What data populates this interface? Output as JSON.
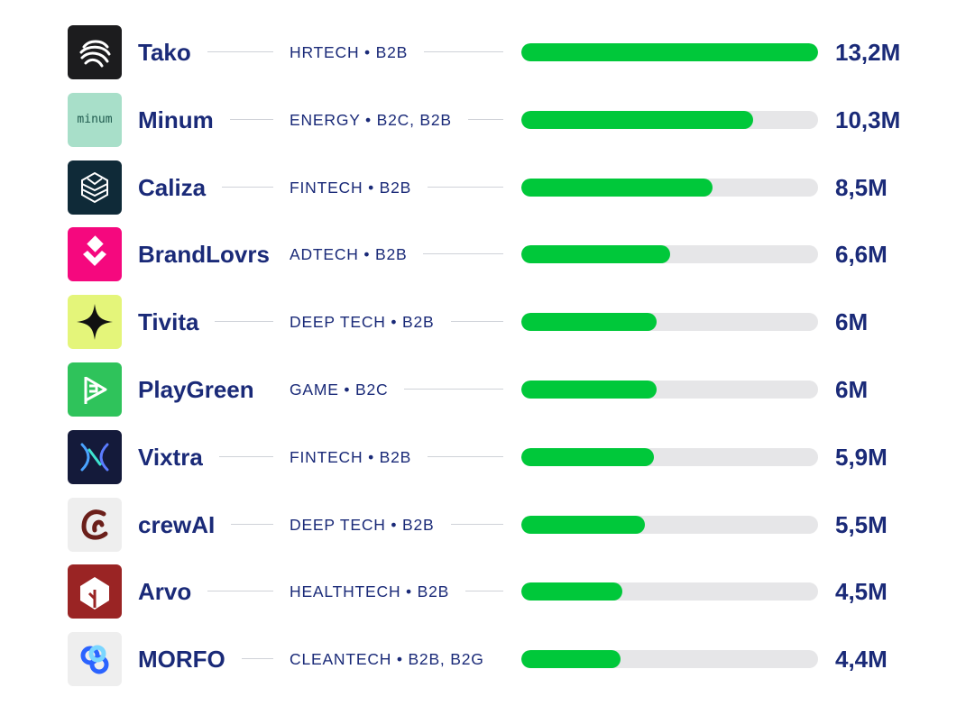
{
  "colors": {
    "text": "#1a2a78",
    "bar_fill": "#00c83a",
    "bar_track": "#e6e6e8",
    "connector": "#cfd2d8"
  },
  "chart_data": {
    "type": "bar",
    "orientation": "horizontal",
    "title": "",
    "xlabel": "",
    "ylabel": "",
    "xlim": [
      0,
      13.2
    ],
    "grid": false,
    "legend": "none",
    "categories": [
      "Tako",
      "Minum",
      "Caliza",
      "BrandLovrs",
      "Tivita",
      "PlayGreen",
      "Vixtra",
      "crewAI",
      "Arvo",
      "MORFO"
    ],
    "series": [
      {
        "values": [
          13.2,
          10.3,
          8.5,
          6.6,
          6,
          6,
          5.9,
          5.5,
          4.5,
          4.4
        ]
      }
    ],
    "data_labels": [
      "13,2M",
      "10,3M",
      "8,5M",
      "6,6M",
      "6M",
      "6M",
      "5,9M",
      "5,5M",
      "4,5M",
      "4,4M"
    ],
    "row_labels": [
      "HRTECH • B2B",
      "ENERGY • B2C, B2B",
      "FINTECH • B2B",
      "ADTECH • B2B",
      "DEEP TECH • B2B",
      "GAME • B2C",
      "FINTECH • B2B",
      "DEEP TECH • B2B",
      "HEALTHTECH • B2B",
      "CLEANTECH • B2B, B2G"
    ]
  },
  "rows": [
    {
      "name": "Tako",
      "category": "HRTECH • B2B",
      "value": 13.2,
      "value_label": "13,2M",
      "logo_icon": "tako-wave-icon",
      "logo_bg": "#1c1c1e",
      "logo_text": ""
    },
    {
      "name": "Minum",
      "category": "ENERGY • B2C, B2B",
      "value": 10.3,
      "value_label": "10,3M",
      "logo_icon": "minum-wordmark-icon",
      "logo_bg": "#a8dfc9",
      "logo_text": "minum"
    },
    {
      "name": "Caliza",
      "category": "FINTECH • B2B",
      "value": 8.5,
      "value_label": "8,5M",
      "logo_icon": "caliza-hexagon-icon",
      "logo_bg": "#0f2a38",
      "logo_text": ""
    },
    {
      "name": "BrandLovrs",
      "category": "ADTECH • B2B",
      "value": 6.6,
      "value_label": "6,6M",
      "logo_icon": "brandlovrs-diamond-icon",
      "logo_bg": "#f5087e",
      "logo_text": ""
    },
    {
      "name": "Tivita",
      "category": "DEEP TECH • B2B",
      "value": 6,
      "value_label": "6M",
      "logo_icon": "tivita-star-icon",
      "logo_bg": "#e4f57a",
      "logo_text": ""
    },
    {
      "name": "PlayGreen",
      "category": "GAME • B2C",
      "value": 6,
      "value_label": "6M",
      "logo_icon": "playgreen-flag-icon",
      "logo_bg": "#2fc35b",
      "logo_text": ""
    },
    {
      "name": "Vixtra",
      "category": "FINTECH • B2B",
      "value": 5.9,
      "value_label": "5,9M",
      "logo_icon": "vixtra-x-icon",
      "logo_bg": "#141a3a",
      "logo_text": ""
    },
    {
      "name": "crewAI",
      "category": "DEEP TECH • B2B",
      "value": 5.5,
      "value_label": "5,5M",
      "logo_icon": "crewai-swirl-icon",
      "logo_bg": "#eeeeee",
      "logo_text": ""
    },
    {
      "name": "Arvo",
      "category": "HEALTHTECH • B2B",
      "value": 4.5,
      "value_label": "4,5M",
      "logo_icon": "arvo-tree-icon",
      "logo_bg": "#9a2424",
      "logo_text": ""
    },
    {
      "name": "MORFO",
      "category": "CLEANTECH • B2B, B2G",
      "value": 4.4,
      "value_label": "4,4M",
      "logo_icon": "morfo-circles-icon",
      "logo_bg": "#eeeeee",
      "logo_text": ""
    }
  ]
}
